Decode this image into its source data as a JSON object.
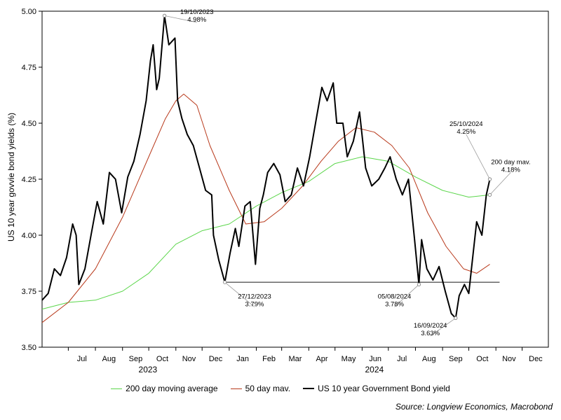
{
  "chart_data": {
    "type": "line",
    "ylabel": "US 10 year govvie bond yields (%)",
    "ylim": [
      3.5,
      5.0
    ],
    "yticks": [
      "3.50",
      "3.75",
      "4.00",
      "4.25",
      "4.50",
      "4.75",
      "5.00"
    ],
    "xlim": [
      "2023-06-01",
      "2024-12-31"
    ],
    "month_ticks": [
      "Jul",
      "Aug",
      "Sep",
      "Oct",
      "Nov",
      "Dec",
      "Jan",
      "Feb",
      "Mar",
      "Apr",
      "May",
      "Jun",
      "Jul",
      "Aug",
      "Sep",
      "Oct",
      "Nov",
      "Dec"
    ],
    "year_labels": [
      {
        "label": "2023",
        "at": "2023-09-30"
      },
      {
        "label": "2024",
        "at": "2024-06-15"
      }
    ],
    "colors": {
      "yield": "#000000",
      "ma50": "#b8391b",
      "ma200": "#5bd64b",
      "reference": "#333333",
      "annotation": "#999999"
    },
    "series": [
      {
        "name": "US 10 year Government Bond yield",
        "key": "yield",
        "x": [
          "2023-06-01",
          "2023-06-08",
          "2023-06-15",
          "2023-06-22",
          "2023-06-29",
          "2023-07-06",
          "2023-07-10",
          "2023-07-13",
          "2023-07-20",
          "2023-07-27",
          "2023-08-03",
          "2023-08-10",
          "2023-08-17",
          "2023-08-24",
          "2023-08-31",
          "2023-09-07",
          "2023-09-14",
          "2023-09-21",
          "2023-09-28",
          "2023-10-03",
          "2023-10-06",
          "2023-10-10",
          "2023-10-13",
          "2023-10-19",
          "2023-10-24",
          "2023-10-31",
          "2023-11-03",
          "2023-11-08",
          "2023-11-14",
          "2023-11-21",
          "2023-11-28",
          "2023-12-05",
          "2023-12-12",
          "2023-12-14",
          "2023-12-20",
          "2023-12-27",
          "2024-01-02",
          "2024-01-08",
          "2024-01-12",
          "2024-01-19",
          "2024-01-25",
          "2024-01-31",
          "2024-02-05",
          "2024-02-09",
          "2024-02-14",
          "2024-02-21",
          "2024-02-28",
          "2024-03-05",
          "2024-03-12",
          "2024-03-19",
          "2024-03-26",
          "2024-04-02",
          "2024-04-10",
          "2024-04-16",
          "2024-04-22",
          "2024-04-29",
          "2024-05-03",
          "2024-05-10",
          "2024-05-15",
          "2024-05-22",
          "2024-05-29",
          "2024-06-05",
          "2024-06-12",
          "2024-06-20",
          "2024-06-27",
          "2024-07-03",
          "2024-07-10",
          "2024-07-17",
          "2024-07-24",
          "2024-07-31",
          "2024-08-05",
          "2024-08-08",
          "2024-08-14",
          "2024-08-21",
          "2024-08-28",
          "2024-09-04",
          "2024-09-11",
          "2024-09-16",
          "2024-09-20",
          "2024-09-26",
          "2024-10-01",
          "2024-10-04",
          "2024-10-10",
          "2024-10-16",
          "2024-10-21",
          "2024-10-25"
        ],
        "values": [
          3.71,
          3.74,
          3.85,
          3.82,
          3.9,
          4.05,
          4.0,
          3.78,
          3.85,
          4.0,
          4.15,
          4.05,
          4.28,
          4.25,
          4.1,
          4.26,
          4.33,
          4.45,
          4.6,
          4.78,
          4.85,
          4.65,
          4.7,
          4.98,
          4.85,
          4.88,
          4.6,
          4.52,
          4.45,
          4.4,
          4.3,
          4.2,
          4.18,
          4.0,
          3.89,
          3.79,
          3.92,
          4.03,
          3.95,
          4.13,
          4.15,
          3.87,
          4.12,
          4.18,
          4.28,
          4.32,
          4.27,
          4.15,
          4.18,
          4.3,
          4.22,
          4.35,
          4.53,
          4.66,
          4.6,
          4.68,
          4.5,
          4.5,
          4.35,
          4.42,
          4.55,
          4.3,
          4.22,
          4.25,
          4.3,
          4.35,
          4.25,
          4.18,
          4.25,
          3.98,
          3.78,
          3.98,
          3.85,
          3.8,
          3.86,
          3.75,
          3.65,
          3.63,
          3.73,
          3.78,
          3.74,
          3.85,
          4.06,
          4.0,
          4.18,
          4.25
        ]
      },
      {
        "name": "50 day mav.",
        "key": "ma50",
        "x": [
          "2023-06-01",
          "2023-07-01",
          "2023-08-01",
          "2023-09-01",
          "2023-10-01",
          "2023-10-20",
          "2023-11-01",
          "2023-11-10",
          "2023-11-25",
          "2023-12-10",
          "2024-01-01",
          "2024-01-20",
          "2024-02-10",
          "2024-03-01",
          "2024-03-25",
          "2024-04-15",
          "2024-05-05",
          "2024-05-25",
          "2024-06-15",
          "2024-07-05",
          "2024-07-25",
          "2024-08-15",
          "2024-09-05",
          "2024-09-25",
          "2024-10-10",
          "2024-10-25"
        ],
        "values": [
          3.61,
          3.7,
          3.85,
          4.08,
          4.35,
          4.52,
          4.6,
          4.63,
          4.58,
          4.4,
          4.2,
          4.05,
          4.06,
          4.12,
          4.22,
          4.33,
          4.42,
          4.48,
          4.46,
          4.4,
          4.3,
          4.1,
          3.95,
          3.85,
          3.83,
          3.87
        ]
      },
      {
        "name": "200 day moving average",
        "key": "ma200",
        "x": [
          "2023-06-01",
          "2023-07-01",
          "2023-08-01",
          "2023-09-01",
          "2023-10-01",
          "2023-11-01",
          "2023-12-01",
          "2024-01-01",
          "2024-02-01",
          "2024-03-01",
          "2024-04-01",
          "2024-05-01",
          "2024-06-01",
          "2024-07-01",
          "2024-08-01",
          "2024-09-01",
          "2024-10-01",
          "2024-10-25"
        ],
        "values": [
          3.67,
          3.7,
          3.71,
          3.75,
          3.83,
          3.96,
          4.02,
          4.05,
          4.13,
          4.19,
          4.24,
          4.32,
          4.35,
          4.33,
          4.26,
          4.2,
          4.17,
          4.18
        ]
      }
    ],
    "reference_line": {
      "value": 3.79,
      "from": "2023-12-27",
      "to": "2024-10-25"
    },
    "annotations": [
      {
        "date_label": "19/10/2023",
        "value_label": "4.98%",
        "x": "2023-10-19",
        "y": 4.98,
        "text_at": {
          "x": "2023-11-25",
          "y": 4.95
        }
      },
      {
        "date_label": "27/12/2023",
        "value_label": "3.79%",
        "x": "2023-12-27",
        "y": 3.79,
        "text_at": {
          "x": "2024-01-30",
          "y": 3.68
        }
      },
      {
        "date_label": "05/08/2024",
        "value_label": "3.78%",
        "x": "2024-08-05",
        "y": 3.78,
        "text_at": {
          "x": "2024-07-08",
          "y": 3.68
        }
      },
      {
        "date_label": "16/09/2024",
        "value_label": "3.63%",
        "x": "2024-09-16",
        "y": 3.63,
        "text_at": {
          "x": "2024-08-18",
          "y": 3.55
        }
      },
      {
        "date_label": "25/10/2024",
        "value_label": "4.25%",
        "x": "2024-10-25",
        "y": 4.25,
        "text_at": {
          "x": "2024-09-28",
          "y": 4.45
        }
      },
      {
        "label": "200 day mav.",
        "value_label": "4.18%",
        "x": "2024-10-25",
        "y": 4.18,
        "text_at": {
          "x": "2024-11-18",
          "y": 4.28
        }
      }
    ],
    "grid": false,
    "legend_position": "bottom"
  },
  "source": "Source: Longview Economics, Macrobond"
}
